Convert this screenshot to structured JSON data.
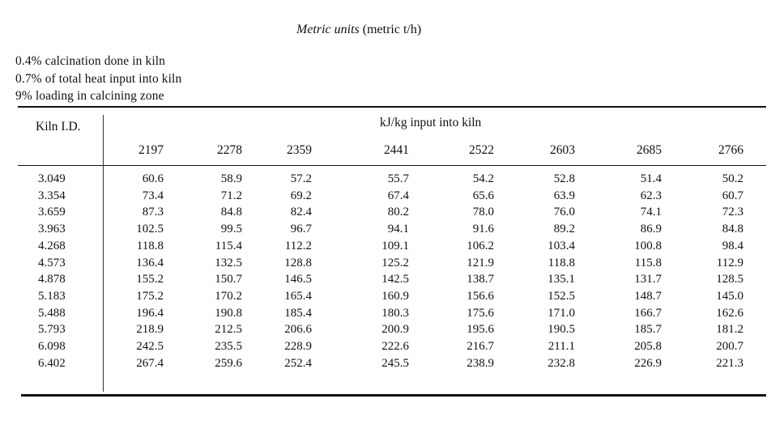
{
  "title": {
    "italic": "Metric units",
    "rest": " (metric t/h)"
  },
  "notes": [
    "0.4% calcination done in kiln",
    "0.7% of total heat input into kiln",
    "9% loading in calcining zone"
  ],
  "table": {
    "stub_header": "Kiln I.D.",
    "span_header": "kJ/kg input into kiln",
    "columns": [
      "2197",
      "2278",
      "2359",
      "2441",
      "2522",
      "2603",
      "2685",
      "2766"
    ],
    "rows": [
      {
        "label": "3.049",
        "values": [
          "60.6",
          "58.9",
          "57.2",
          "55.7",
          "54.2",
          "52.8",
          "51.4",
          "50.2"
        ]
      },
      {
        "label": "3.354",
        "values": [
          "73.4",
          "71.2",
          "69.2",
          "67.4",
          "65.6",
          "63.9",
          "62.3",
          "60.7"
        ]
      },
      {
        "label": "3.659",
        "values": [
          "87.3",
          "84.8",
          "82.4",
          "80.2",
          "78.0",
          "76.0",
          "74.1",
          "72.3"
        ]
      },
      {
        "label": "3.963",
        "values": [
          "102.5",
          "99.5",
          "96.7",
          "94.1",
          "91.6",
          "89.2",
          "86.9",
          "84.8"
        ]
      },
      {
        "label": "4.268",
        "values": [
          "118.8",
          "115.4",
          "112.2",
          "109.1",
          "106.2",
          "103.4",
          "100.8",
          "98.4"
        ]
      },
      {
        "label": "4.573",
        "values": [
          "136.4",
          "132.5",
          "128.8",
          "125.2",
          "121.9",
          "118.8",
          "115.8",
          "112.9"
        ]
      },
      {
        "label": "4.878",
        "values": [
          "155.2",
          "150.7",
          "146.5",
          "142.5",
          "138.7",
          "135.1",
          "131.7",
          "128.5"
        ]
      },
      {
        "label": "5.183",
        "values": [
          "175.2",
          "170.2",
          "165.4",
          "160.9",
          "156.6",
          "152.5",
          "148.7",
          "145.0"
        ]
      },
      {
        "label": "5.488",
        "values": [
          "196.4",
          "190.8",
          "185.4",
          "180.3",
          "175.6",
          "171.0",
          "166.7",
          "162.6"
        ]
      },
      {
        "label": "5.793",
        "values": [
          "218.9",
          "212.5",
          "206.6",
          "200.9",
          "195.6",
          "190.5",
          "185.7",
          "181.2"
        ]
      },
      {
        "label": "6.098",
        "values": [
          "242.5",
          "235.5",
          "228.9",
          "222.6",
          "216.7",
          "211.1",
          "205.8",
          "200.7"
        ]
      },
      {
        "label": "6.402",
        "values": [
          "267.4",
          "259.6",
          "252.4",
          "245.5",
          "238.9",
          "232.8",
          "226.9",
          "221.3"
        ]
      }
    ]
  }
}
